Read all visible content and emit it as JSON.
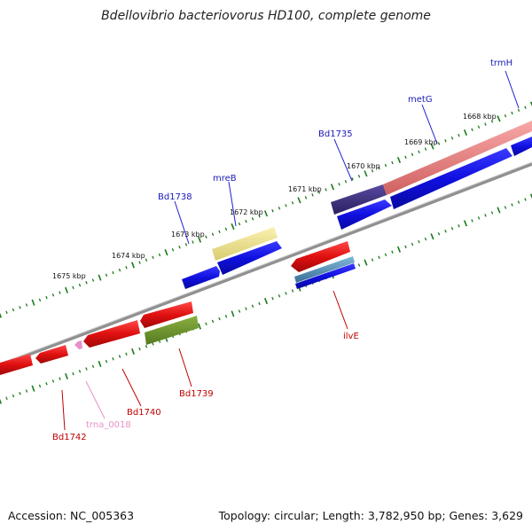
{
  "title": "Bdellovibrio bacteriovorus HD100, complete genome",
  "footer": {
    "accession": "Accession: NC_005363",
    "summary": "Topology: circular; Length: 3,782,950 bp; Genes: 3,629"
  },
  "colors": {
    "background": "#ffffff",
    "backbone": "#808080",
    "tick": "#1a7a1a",
    "forward_cds": "#1010e0",
    "reverse_cds": "#e01010",
    "trna": "#e890c8",
    "label_forward": "#1a1ab8",
    "label_reverse": "#c00000",
    "label_trna": "#e890c8"
  },
  "kbp_labels": [
    "1668 kbp",
    "1669 kbp",
    "1670 kbp",
    "1671 kbp",
    "1672 kbp",
    "1673 kbp",
    "1674 kbp",
    "1675 kbp"
  ],
  "gene_labels": [
    {
      "name": "trmH",
      "strand": "forward"
    },
    {
      "name": "metG",
      "strand": "forward"
    },
    {
      "name": "Bd1735",
      "strand": "forward"
    },
    {
      "name": "mreB",
      "strand": "forward"
    },
    {
      "name": "Bd1738",
      "strand": "forward"
    },
    {
      "name": "ilvE",
      "strand": "reverse"
    },
    {
      "name": "Bd1739",
      "strand": "reverse"
    },
    {
      "name": "Bd1740",
      "strand": "reverse"
    },
    {
      "name": "trna_0018",
      "strand": "trna"
    },
    {
      "name": "Bd1742",
      "strand": "reverse"
    }
  ]
}
